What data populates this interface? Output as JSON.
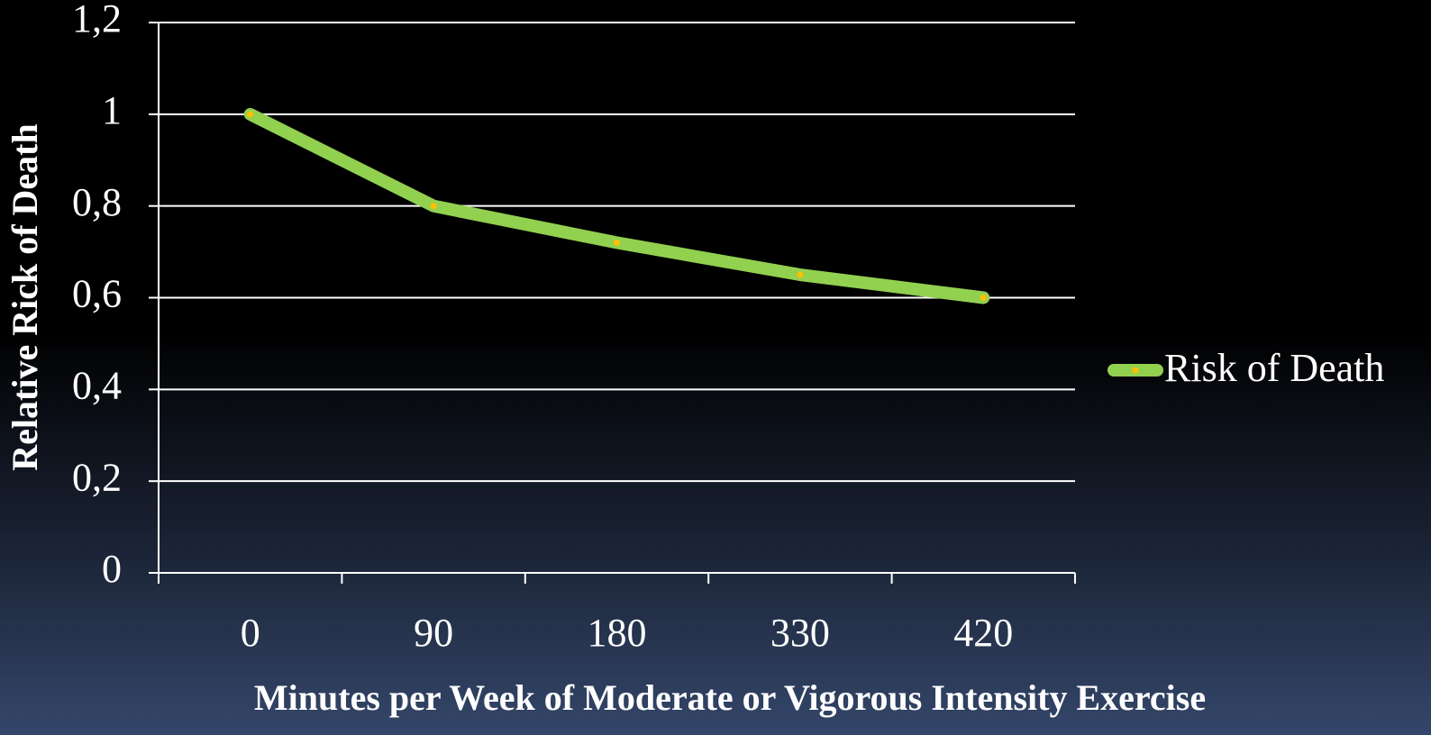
{
  "chart_data": {
    "type": "line",
    "xlabel": "Minutes per Week of Moderate or Vigorous Intensity Exercise",
    "ylabel": "Relative Rick of Death",
    "categories": [
      "0",
      "90",
      "180",
      "330",
      "420"
    ],
    "series": [
      {
        "name": "Risk of Death",
        "color": "#92d050",
        "marker_color": "#ffc000",
        "values": [
          1,
          0.8,
          0.72,
          0.65,
          0.6
        ]
      }
    ],
    "ylim": [
      0,
      1.2
    ],
    "yticks": [
      0,
      {
        "value": 0.2,
        "label": "0,2"
      },
      {
        "value": 0.4,
        "label": "0,4"
      },
      {
        "value": 0.6,
        "label": "0,6"
      },
      {
        "value": 0.8,
        "label": "0,8"
      },
      1,
      {
        "value": 1.2,
        "label": "1,2"
      }
    ],
    "grid": true,
    "legend": "right"
  }
}
